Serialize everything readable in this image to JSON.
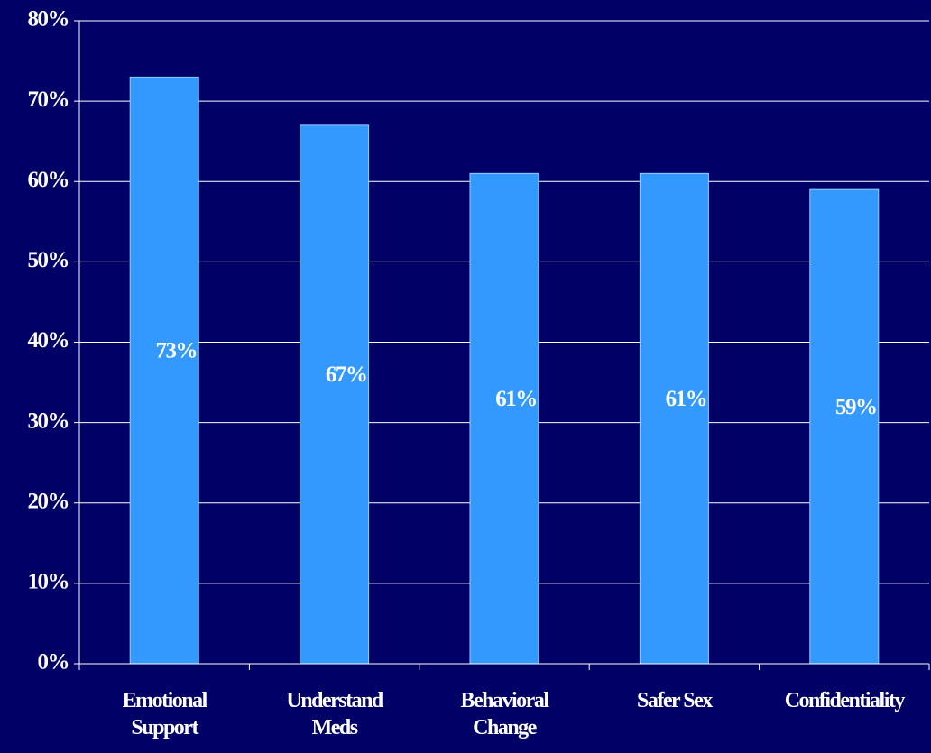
{
  "chart_data": {
    "type": "bar",
    "categories": [
      "Emotional Support",
      "Understand Meds",
      "Behavioral Change",
      "Safer Sex",
      "Confidentiality"
    ],
    "values": [
      73,
      67,
      61,
      61,
      59
    ],
    "value_labels": [
      "73%",
      "67%",
      "61%",
      "61%",
      "59%"
    ],
    "color": "#3399ff",
    "ylim": [
      0,
      80
    ],
    "yticks": [
      {
        "value": 0,
        "label": "0%"
      },
      {
        "value": 10,
        "label": "10%"
      },
      {
        "value": 20,
        "label": "20%"
      },
      {
        "value": 30,
        "label": "30%"
      },
      {
        "value": 40,
        "label": "40%"
      },
      {
        "value": 50,
        "label": "50%"
      },
      {
        "value": 60,
        "label": "60%"
      },
      {
        "value": 70,
        "label": "70%"
      },
      {
        "value": 80,
        "label": "80%"
      }
    ],
    "grid": true
  }
}
